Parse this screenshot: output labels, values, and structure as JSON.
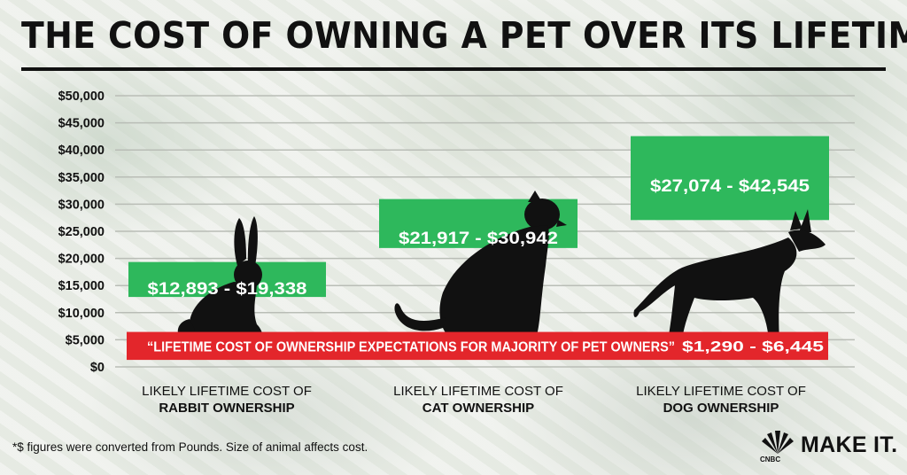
{
  "title": "THE COST OF OWNING A PET OVER ITS LIFETIME",
  "footnote": "*$ figures were converted from Pounds. Size of animal affects cost.",
  "brand": {
    "name": "MAKE IT.",
    "network": "CNBC"
  },
  "colors": {
    "range_box": "#2eb85c",
    "expectation_bar": "#e3262b",
    "grid": "#b9bdb6",
    "text": "#111111",
    "silhouette": "#111111"
  },
  "chart_data": {
    "type": "bar",
    "title": "THE COST OF OWNING A PET OVER ITS LIFETIME",
    "ylim": [
      0,
      50000
    ],
    "y_ticks": [
      0,
      5000,
      10000,
      15000,
      20000,
      25000,
      30000,
      35000,
      40000,
      45000,
      50000
    ],
    "y_tick_labels": [
      "$0",
      "$5,000",
      "$10,000",
      "$15,000",
      "$20,000",
      "$25,000",
      "$30,000",
      "$35,000",
      "$40,000",
      "$45,000",
      "$50,000"
    ],
    "grid": true,
    "categories": [
      {
        "line1": "LIKELY LIFETIME COST OF",
        "line2": "RABBIT OWNERSHIP",
        "animal": "rabbit-silhouette"
      },
      {
        "line1": "LIKELY LIFETIME COST OF",
        "line2": "CAT OWNERSHIP",
        "animal": "cat-silhouette"
      },
      {
        "line1": "LIKELY LIFETIME COST OF",
        "line2": "DOG OWNERSHIP",
        "animal": "dog-silhouette"
      }
    ],
    "ranges": [
      {
        "low": 12893,
        "high": 19338,
        "label": "$12,893 - $19,338"
      },
      {
        "low": 21917,
        "high": 30942,
        "label": "$21,917 - $30,942"
      },
      {
        "low": 27074,
        "high": 42545,
        "label": "$27,074 - $42,545"
      }
    ],
    "expectation": {
      "low": 1290,
      "high": 6445,
      "text": "“LIFETIME COST OF OWNERSHIP EXPECTATIONS FOR MAJORITY OF PET OWNERS”",
      "value_label": "$1,290 - $6,445"
    }
  }
}
